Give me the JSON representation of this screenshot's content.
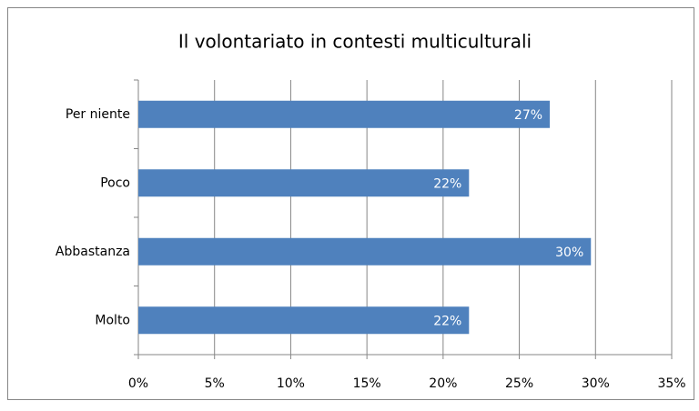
{
  "chart_data": {
    "type": "bar",
    "orientation": "horizontal",
    "title": "Il volontariato in contesti multiculturali",
    "categories": [
      "Per niente",
      "Poco",
      "Abbastanza",
      "Molto"
    ],
    "values": [
      27,
      21.7,
      29.7,
      21.7
    ],
    "value_labels": [
      "27%",
      "22%",
      "30%",
      "22%"
    ],
    "color": "#4f81bd",
    "xlim": [
      0,
      35
    ],
    "xticks": [
      {
        "value": 0,
        "label": "0%"
      },
      {
        "value": 5,
        "label": "5%"
      },
      {
        "value": 10,
        "label": "10%"
      },
      {
        "value": 15,
        "label": "15%"
      },
      {
        "value": 20,
        "label": "20%"
      },
      {
        "value": 25,
        "label": "25%"
      },
      {
        "value": 30,
        "label": "30%"
      },
      {
        "value": 35,
        "label": "35%"
      }
    ],
    "grid": true
  }
}
